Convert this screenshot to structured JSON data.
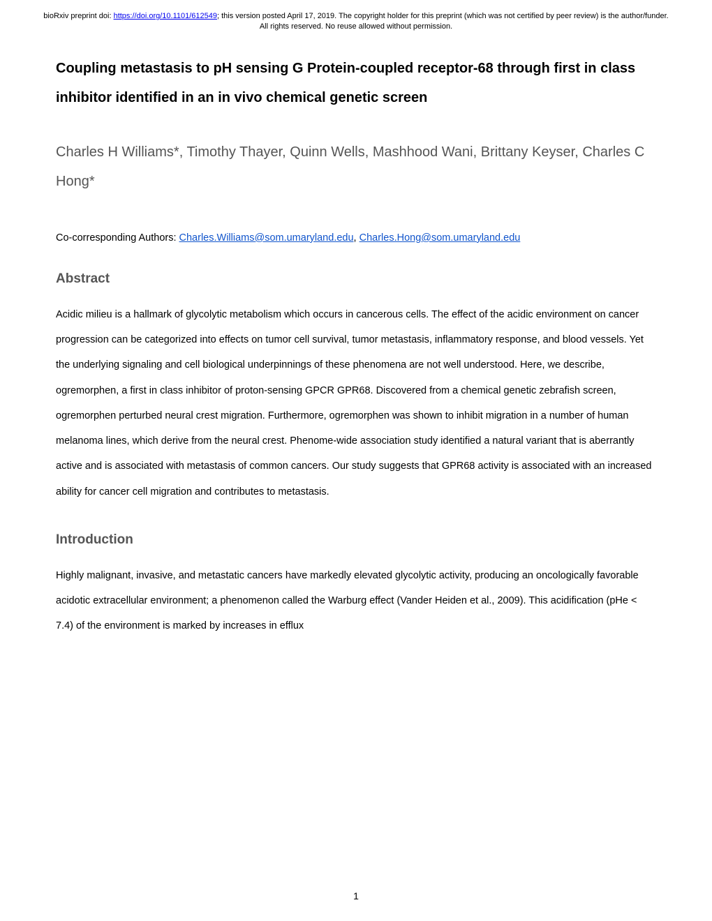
{
  "preprintNotice": {
    "prefix": "bioRxiv preprint doi: ",
    "doiUrl": "https://doi.org/10.1101/612549",
    "suffix": "; this version posted April 17, 2019. The copyright holder for this preprint (which was not certified by peer review) is the author/funder. All rights reserved. No reuse allowed without permission."
  },
  "title": "Coupling metastasis to pH sensing G Protein-coupled receptor-68 through first in class inhibitor identified in an in vivo chemical genetic screen",
  "authors": "Charles H Williams*, Timothy Thayer, Quinn Wells, Mashhood Wani, Brittany Keyser, Charles C Hong*",
  "corresponding": {
    "label": "Co-corresponding Authors: ",
    "email1": "Charles.Williams@som.umaryland.edu",
    "separator": ", ",
    "email2": "Charles.Hong@som.umaryland.edu"
  },
  "abstractHeading": "Abstract",
  "abstractText": "Acidic milieu is a hallmark of glycolytic metabolism which occurs in cancerous cells. The effect of the acidic environment on cancer progression can be categorized into effects on tumor cell survival, tumor metastasis, inflammatory response, and blood vessels. Yet the underlying signaling and cell biological underpinnings of these phenomena are not well understood.  Here, we describe, ogremorphen, a first in class inhibitor of proton-sensing GPCR GPR68.  Discovered from a chemical genetic zebrafish screen, ogremorphen perturbed neural crest migration.  Furthermore, ogremorphen was shown to inhibit migration in a number of human melanoma lines, which derive from the neural crest.  Phenome-wide association study identified a natural variant that is aberrantly active and is associated with metastasis of common cancers.  Our study suggests that GPR68 activity is associated with an increased ability for cancer cell migration and contributes to metastasis.",
  "introHeading": "Introduction",
  "introText": "Highly malignant, invasive, and metastatic cancers have markedly elevated glycolytic activity, producing an oncologically favorable acidotic extracellular environment; a phenomenon called the Warburg effect (Vander Heiden et al., 2009). This acidification (pHe < 7.4) of the environment is marked by increases in efflux",
  "pageNumber": "1"
}
